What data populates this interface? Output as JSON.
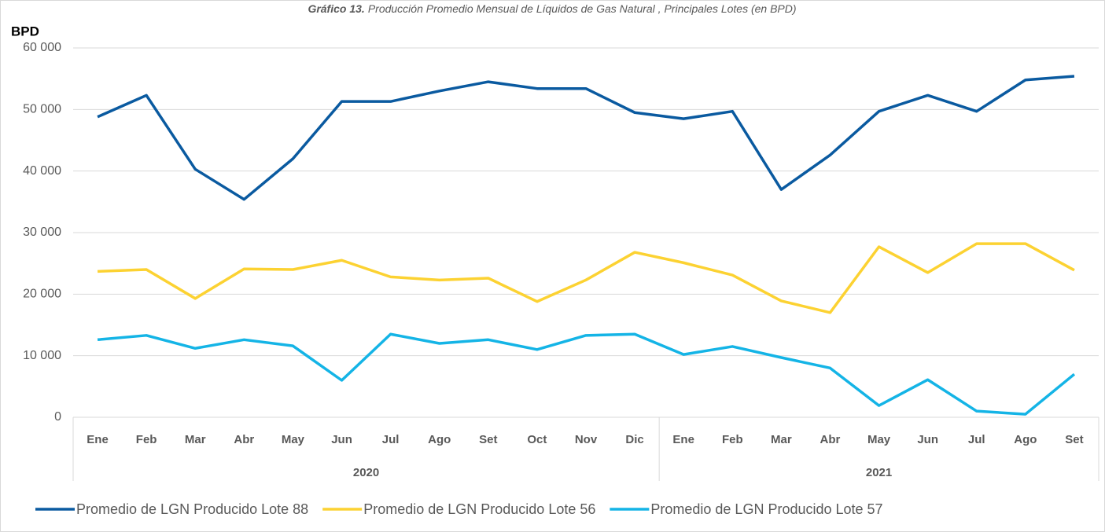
{
  "chart_data": {
    "type": "line",
    "title_label": "Gráfico 13.",
    "title": "Producción Promedio Mensual de Líquidos de Gas Natural , Principales Lotes (en BPD)",
    "y_label": "BPD",
    "category_groups": [
      {
        "label": "2020",
        "categories": [
          "Ene",
          "Feb",
          "Mar",
          "Abr",
          "May",
          "Jun",
          "Jul",
          "Ago",
          "Set",
          "Oct",
          "Nov",
          "Dic"
        ]
      },
      {
        "label": "2021",
        "categories": [
          "Ene",
          "Feb",
          "Mar",
          "Abr",
          "May",
          "Jun",
          "Jul",
          "Ago",
          "Set"
        ]
      }
    ],
    "series": [
      {
        "name": "Promedio de LGN Producido Lote 88",
        "color": "#0a5aa0",
        "values": [
          48800,
          52300,
          40300,
          35400,
          42000,
          51300,
          51300,
          53000,
          54500,
          53400,
          53400,
          49500,
          48500,
          49700,
          37000,
          42600,
          49700,
          52300,
          49700,
          54800,
          55400
        ]
      },
      {
        "name": "Promedio de LGN Producido Lote 56",
        "color": "#fcd232",
        "values": [
          23700,
          24000,
          19300,
          24100,
          24000,
          25500,
          22800,
          22300,
          22600,
          18800,
          22300,
          26800,
          25100,
          23100,
          18900,
          17000,
          27700,
          23500,
          28200,
          28200,
          23900
        ]
      },
      {
        "name": "Promedio de LGN Producido Lote 57",
        "color": "#14b4e6",
        "values": [
          12600,
          13300,
          11200,
          12600,
          11600,
          6000,
          13500,
          12000,
          12600,
          11000,
          13300,
          13500,
          10200,
          11500,
          9700,
          8000,
          1900,
          6100,
          1000,
          500,
          7000
        ]
      }
    ],
    "ylim": [
      0,
      60000
    ],
    "yticks": [
      0,
      {
        "value": 10000,
        "label": "10 000"
      },
      {
        "value": 20000,
        "label": "20 000"
      },
      {
        "value": 30000,
        "label": "30 000"
      },
      {
        "value": 40000,
        "label": "40 000"
      },
      {
        "value": 50000,
        "label": "50 000"
      },
      {
        "value": 60000,
        "label": "60 000"
      }
    ],
    "grid": true,
    "legend": "bottom"
  }
}
